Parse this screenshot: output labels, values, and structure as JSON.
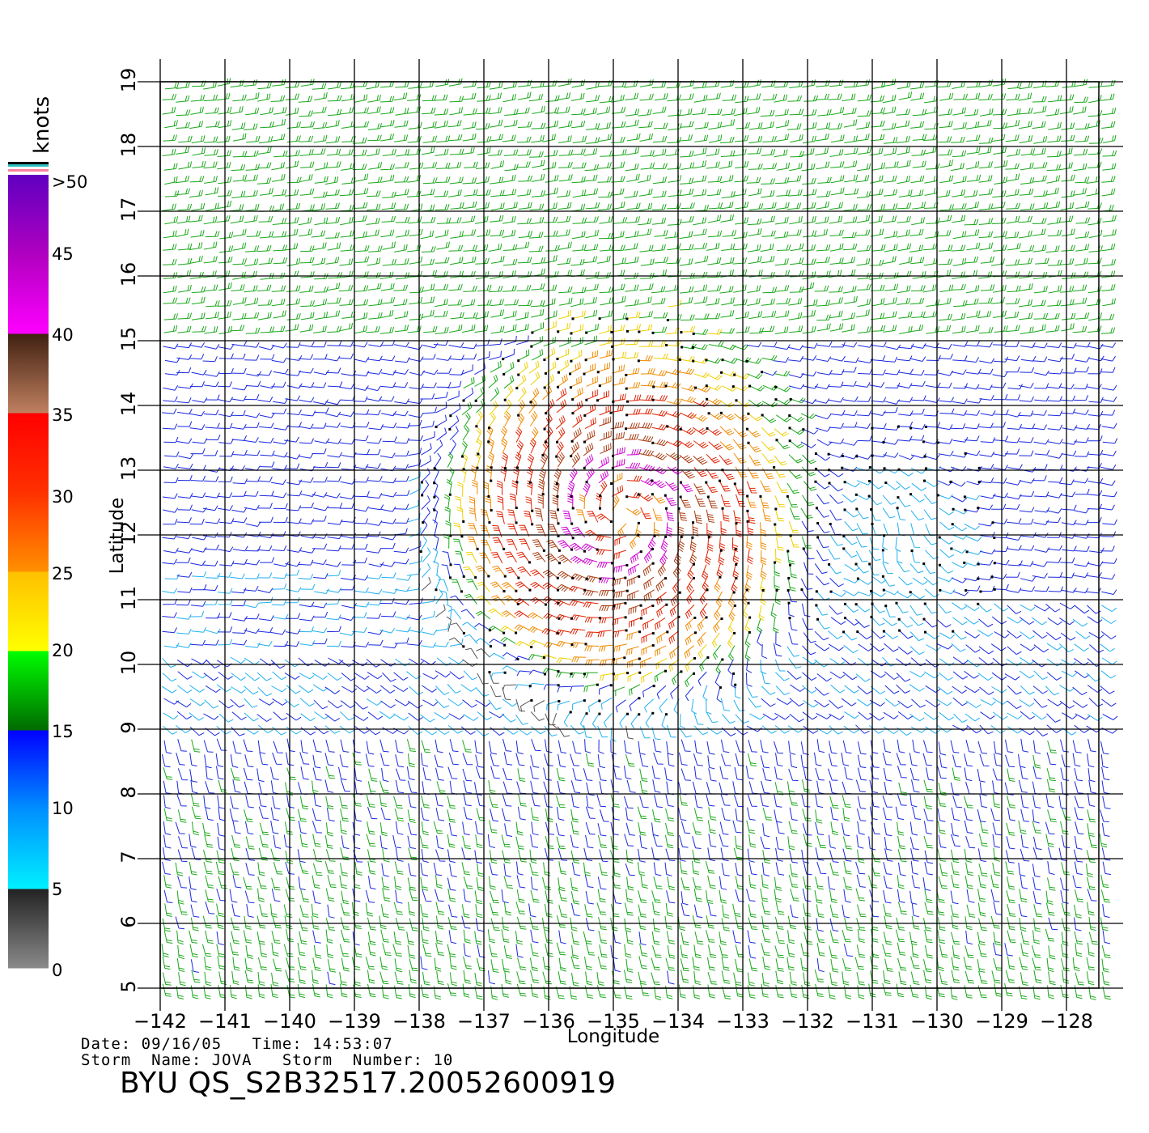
{
  "title": "BYU  QS_S2B32517.20052600919",
  "info": {
    "date_label": "Date:",
    "date": "09/16/05",
    "time_label": "Time:",
    "time": "14:53:07",
    "storm_name_label": "Storm  Name:",
    "storm_name": "JOVA",
    "storm_number_label": "Storm  Number:",
    "storm_number": "10"
  },
  "map": {
    "xlabel": "Longitude",
    "ylabel": "Latitude",
    "lon_range": [
      -142,
      -127.5
    ],
    "lat_range": [
      5,
      19
    ],
    "lon_ticks": [
      -142,
      -141,
      -140,
      -139,
      -138,
      -137,
      -136,
      -135,
      -134,
      -133,
      -132,
      -131,
      -130,
      -129,
      -128
    ],
    "lat_ticks": [
      5,
      6,
      7,
      8,
      9,
      10,
      11,
      12,
      13,
      14,
      15,
      16,
      17,
      18,
      19
    ],
    "grid": true,
    "storm_center": {
      "lon": -134.9,
      "lat": 12.3
    },
    "calm_zone": {
      "lon": -130.7,
      "lat": 12.0
    }
  },
  "colorbar": {
    "unit_label": "knots",
    "labels": [
      "0",
      "5",
      "10",
      "15",
      "20",
      "25",
      "30",
      "35",
      "40",
      "45",
      ">50"
    ],
    "segments": [
      {
        "from": 0,
        "to": 5,
        "colors": [
          "#8a8a8a",
          "#222222"
        ]
      },
      {
        "from": 5,
        "to": 10,
        "colors": [
          "#00f0ff",
          "#0090ff"
        ]
      },
      {
        "from": 10,
        "to": 15,
        "colors": [
          "#0090ff",
          "#0000ff"
        ]
      },
      {
        "from": 15,
        "to": 20,
        "colors": [
          "#006a00",
          "#00ff00"
        ]
      },
      {
        "from": 20,
        "to": 25,
        "colors": [
          "#ffff00",
          "#ffc000"
        ]
      },
      {
        "from": 25,
        "to": 30,
        "colors": [
          "#ff9000",
          "#ff3000"
        ]
      },
      {
        "from": 30,
        "to": 35,
        "colors": [
          "#ff3000",
          "#ff0000"
        ]
      },
      {
        "from": 35,
        "to": 40,
        "colors": [
          "#c08060",
          "#402010"
        ]
      },
      {
        "from": 40,
        "to": 45,
        "colors": [
          "#ff00ff",
          "#b000c0"
        ]
      },
      {
        "from": 45,
        "to": 50,
        "colors": [
          "#b000c0",
          "#6000c0"
        ]
      }
    ],
    "top_stripes": [
      "#ff80a0",
      "#ffffff",
      "#30c0c0",
      "#000000"
    ]
  }
}
